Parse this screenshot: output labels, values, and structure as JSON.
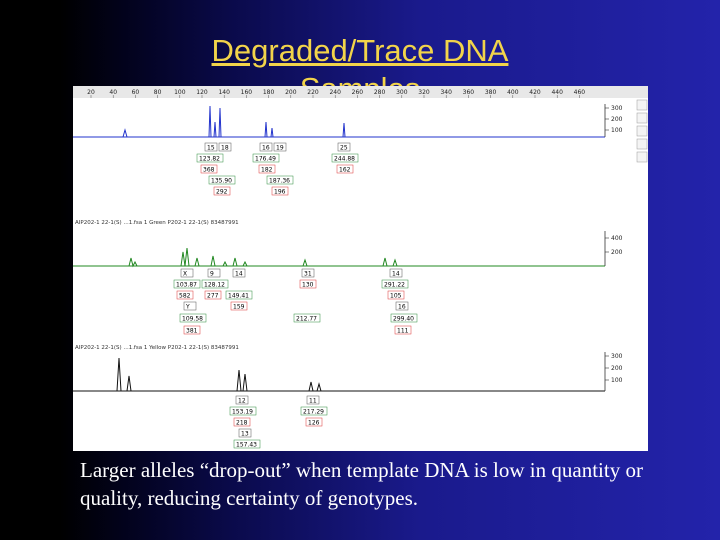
{
  "slide": {
    "title_line1": "Degraded/Trace DNA",
    "title_line2": "Samples",
    "caption": "Larger alleles “drop-out” when template DNA is low in quantity or quality, reducing certainty of genotypes."
  },
  "colors": {
    "title": "#f2d44a",
    "blue_trace": "#2233cc",
    "green_trace": "#228822",
    "black_trace": "#111111",
    "label_border": "#dd3333"
  },
  "ruler": {
    "ticks": [
      "20",
      "40",
      "60",
      "80",
      "100",
      "120",
      "140",
      "160",
      "180",
      "200",
      "220",
      "240",
      "260",
      "280",
      "300",
      "320",
      "340",
      "360",
      "380",
      "400",
      "420",
      "440",
      "460"
    ]
  },
  "panels": [
    {
      "id": "blue",
      "header": "",
      "axis_ticks": [
        "300",
        "200",
        "100"
      ],
      "peak_labels": [
        {
          "allele": "15",
          "size": "123.82",
          "height": "368",
          "size2": "135.90",
          "height2": "292"
        },
        {
          "allele": "18",
          "size": "",
          "height": "",
          "size2": "",
          "height2": ""
        },
        {
          "allele": "16",
          "size": "176.49",
          "height": "182",
          "size2": "187.36",
          "height2": "196"
        },
        {
          "allele": "19",
          "size": "",
          "height": "",
          "size2": "",
          "height2": ""
        },
        {
          "allele": "25",
          "size": "244.88",
          "height": "162",
          "size2": "",
          "height2": ""
        }
      ]
    },
    {
      "id": "green",
      "header": "AIP202-1 22-1(S) ...1.fsa 1 Green   P202-1 22-1(S) 83487991",
      "axis_ticks": [
        "400",
        "200"
      ],
      "peak_labels": [
        {
          "allele": "X",
          "size": "103.87",
          "height": "582",
          "size2": "",
          "height2": ""
        },
        {
          "allele": "9",
          "size": "128.12",
          "height": "277",
          "size2": "",
          "height2": ""
        },
        {
          "allele": "14",
          "size": "149.41",
          "height": "159",
          "size2": "",
          "height2": ""
        },
        {
          "allele": "Y",
          "size": "109.58",
          "height": "381",
          "size2": "",
          "height2": ""
        },
        {
          "allele": "31",
          "size": "",
          "height": "130",
          "size2": "212.77",
          "height2": ""
        },
        {
          "allele": "14",
          "size": "291.22",
          "height": "105",
          "size2": "",
          "height2": ""
        },
        {
          "allele": "16",
          "size": "299.40",
          "height": "111",
          "size2": "",
          "height2": ""
        }
      ]
    },
    {
      "id": "black",
      "header": "AIP202-1 22-1(S) ...1.fsa 1 Yellow   P202-1 22-1(S) 83487991",
      "axis_ticks": [
        "300",
        "200",
        "100"
      ],
      "peak_labels": [
        {
          "allele": "12",
          "size": "153.19",
          "height": "218",
          "size2": "",
          "height2": ""
        },
        {
          "allele": "13",
          "size": "157.43",
          "height": "",
          "size2": "",
          "height2": ""
        },
        {
          "allele": "11",
          "size": "217.29",
          "height": "126",
          "size2": "",
          "height2": ""
        }
      ]
    }
  ]
}
